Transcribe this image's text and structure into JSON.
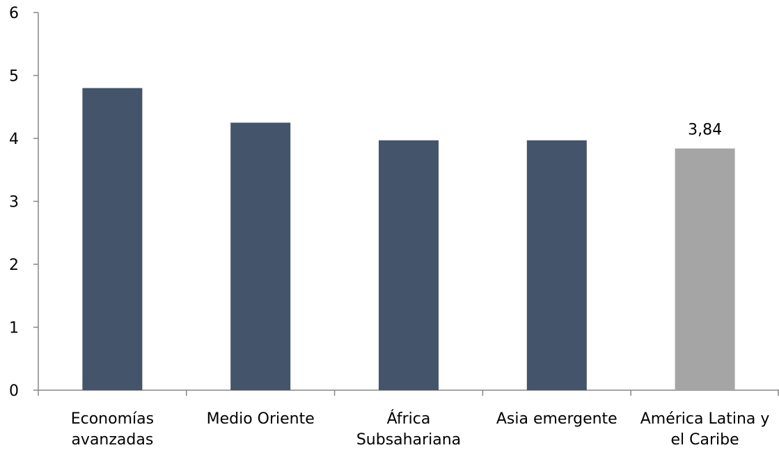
{
  "chart_data": {
    "type": "bar",
    "title": "",
    "xlabel": "",
    "ylabel": "",
    "categories": [
      [
        "Economías",
        "avanzadas"
      ],
      [
        "Medio Oriente"
      ],
      [
        "África",
        "Subsahariana"
      ],
      [
        "Asia emergente"
      ],
      [
        "América Latina y",
        "el Caribe"
      ]
    ],
    "values": [
      4.8,
      4.25,
      3.97,
      3.97,
      3.84
    ],
    "bar_colors": [
      "#44546a",
      "#44546a",
      "#44546a",
      "#44546a",
      "#a5a5a5"
    ],
    "data_labels": [
      "",
      "",
      "",
      "",
      "3,84"
    ],
    "yticks": [
      "0",
      "1",
      "2",
      "3",
      "4",
      "5",
      "6"
    ],
    "ylim": [
      0,
      6
    ],
    "grid": false,
    "legend": "none"
  }
}
